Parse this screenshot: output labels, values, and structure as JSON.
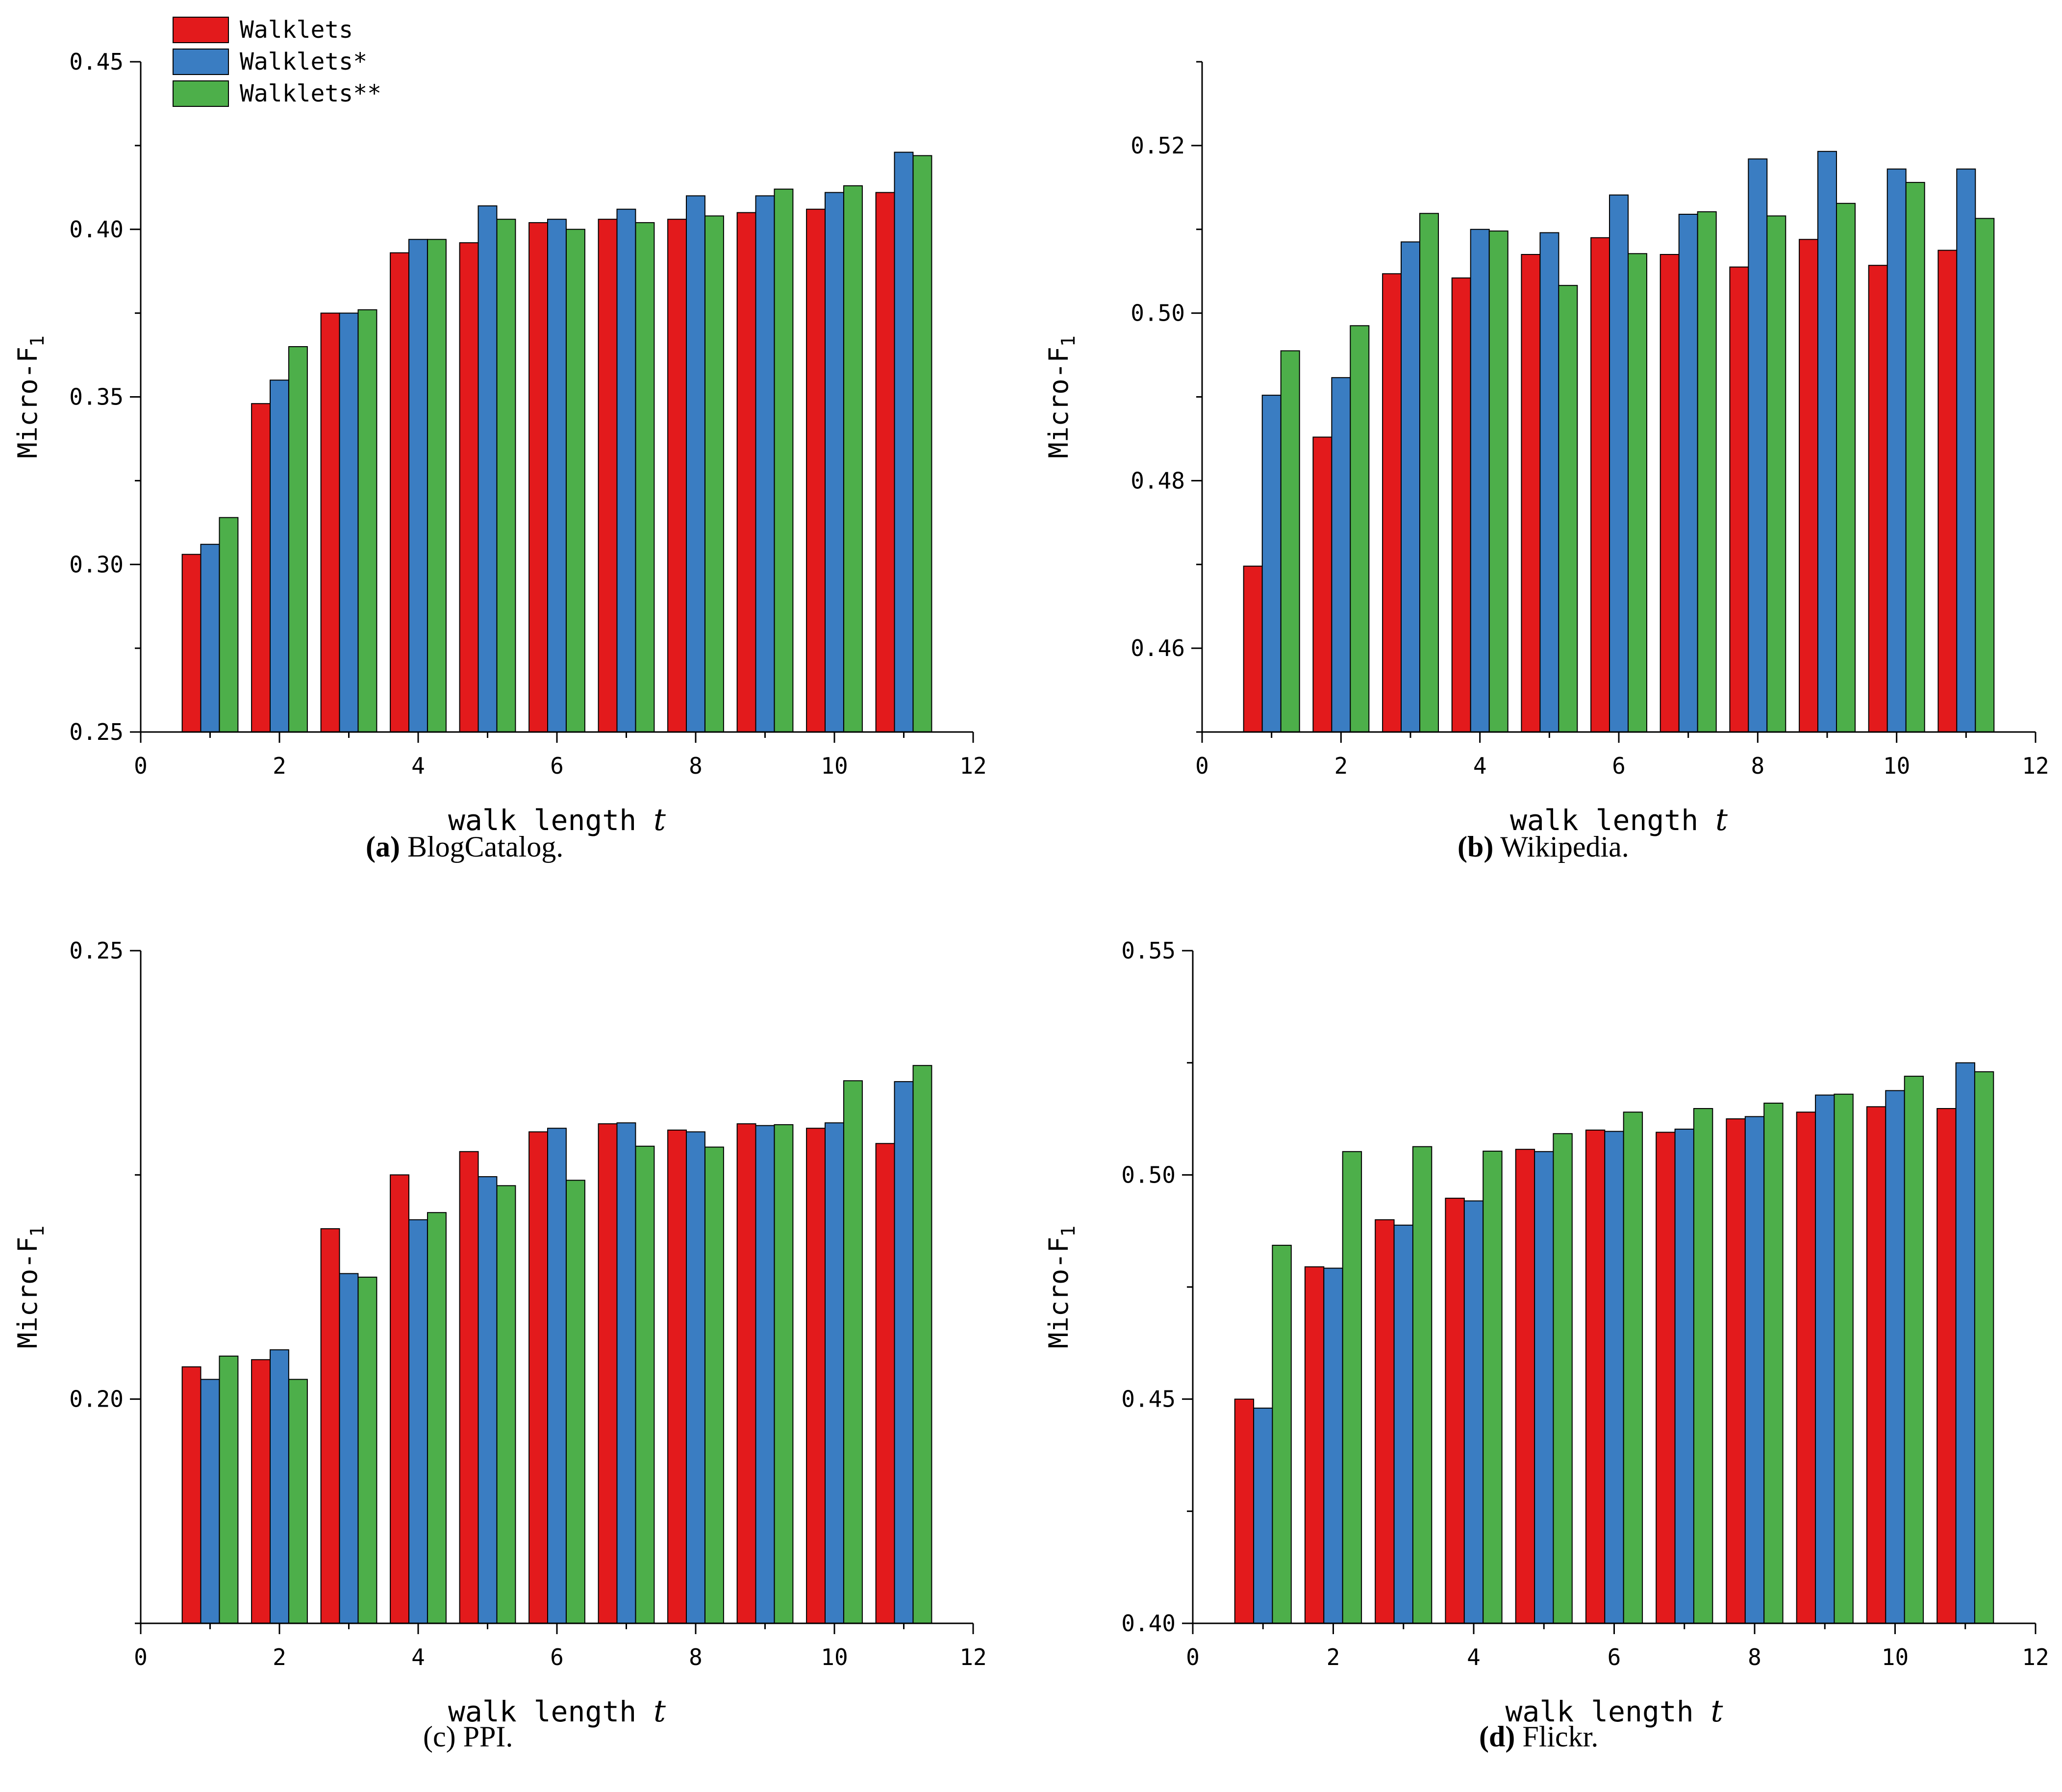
{
  "colors": {
    "Walklets": "#e31a1c",
    "Walklets*": "#3a7dc2",
    "Walklets**": "#4daf4a"
  },
  "legend": {
    "items": [
      {
        "label": "Walklets",
        "color": "#e31a1c"
      },
      {
        "label": "Walklets*",
        "color": "#3a7dc2"
      },
      {
        "label": "Walklets**",
        "color": "#4daf4a"
      }
    ]
  },
  "chart_data": [
    {
      "type": "bar",
      "caption_letter": "(a)",
      "caption_text": "BlogCatalog.",
      "xlabel": "walk length",
      "xvar": "t",
      "ylabel": "Micro-F",
      "ylabel_sub": "1",
      "xlim": [
        0,
        12
      ],
      "ylim": [
        0.25,
        0.45
      ],
      "xticks": [
        "0",
        "2",
        "4",
        "6",
        "8",
        "10",
        "12"
      ],
      "yticks": [
        0.25,
        0.3,
        0.35,
        0.4,
        0.45
      ],
      "ytick_labels": [
        "0.25",
        "0.30",
        "0.35",
        "0.40",
        "0.45"
      ],
      "x": [
        1,
        2,
        3,
        4,
        5,
        6,
        7,
        8,
        9,
        10,
        11
      ],
      "series": [
        {
          "name": "Walklets",
          "values": [
            0.303,
            0.348,
            0.375,
            0.393,
            0.396,
            0.402,
            0.403,
            0.403,
            0.405,
            0.406,
            0.411
          ]
        },
        {
          "name": "Walklets*",
          "values": [
            0.306,
            0.355,
            0.375,
            0.397,
            0.407,
            0.403,
            0.406,
            0.41,
            0.41,
            0.411,
            0.423
          ]
        },
        {
          "name": "Walklets**",
          "values": [
            0.314,
            0.365,
            0.376,
            0.397,
            0.403,
            0.4,
            0.402,
            0.404,
            0.412,
            0.413,
            0.422
          ]
        }
      ]
    },
    {
      "type": "bar",
      "caption_letter": "(b)",
      "caption_text": "Wikipedia.",
      "xlabel": "walk length",
      "xvar": "t",
      "ylabel": "Micro-F",
      "ylabel_sub": "1",
      "xlim": [
        0,
        12
      ],
      "ylim": [
        0.45,
        0.53
      ],
      "xticks": [
        "0",
        "2",
        "4",
        "6",
        "8",
        "10",
        "12"
      ],
      "yticks": [
        0.46,
        0.48,
        0.5,
        0.52
      ],
      "ytick_labels": [
        "0.46",
        "0.48",
        "0.50",
        "0.52"
      ],
      "x": [
        1,
        2,
        3,
        4,
        5,
        6,
        7,
        8,
        9,
        10,
        11
      ],
      "series": [
        {
          "name": "Walklets",
          "values": [
            0.4698,
            0.4852,
            0.5047,
            0.5042,
            0.507,
            0.509,
            0.507,
            0.5055,
            0.5088,
            0.5057,
            0.5075
          ]
        },
        {
          "name": "Walklets*",
          "values": [
            0.4902,
            0.4923,
            0.5085,
            0.51,
            0.5096,
            0.5141,
            0.5118,
            0.5184,
            0.5193,
            0.5172,
            0.5172
          ]
        },
        {
          "name": "Walklets**",
          "values": [
            0.4955,
            0.4985,
            0.5119,
            0.5098,
            0.5033,
            0.5071,
            0.5121,
            0.5116,
            0.5131,
            0.5156,
            0.5113
          ]
        }
      ]
    },
    {
      "type": "bar",
      "caption_letter": "(c)",
      "caption_text": "PPI.",
      "xlabel": "walk length",
      "xvar": "t",
      "ylabel": "Micro-F",
      "ylabel_sub": "1",
      "xlim": [
        0,
        12
      ],
      "ylim": [
        0.175,
        0.25
      ],
      "xticks": [
        "0",
        "2",
        "4",
        "6",
        "8",
        "10",
        "12"
      ],
      "yticks": [
        0.2,
        0.25
      ],
      "ytick_labels": [
        "0.20",
        "0.25"
      ],
      "x": [
        1,
        2,
        3,
        4,
        5,
        6,
        7,
        8,
        9,
        10,
        11
      ],
      "series": [
        {
          "name": "Walklets",
          "values": [
            0.2036,
            0.2044,
            0.219,
            0.225,
            0.2276,
            0.2298,
            0.2307,
            0.23,
            0.2307,
            0.2302,
            0.2285
          ]
        },
        {
          "name": "Walklets*",
          "values": [
            0.2022,
            0.2055,
            0.214,
            0.22,
            0.2248,
            0.2302,
            0.2308,
            0.2298,
            0.2305,
            0.2308,
            0.2354
          ]
        },
        {
          "name": "Walklets**",
          "values": [
            0.2048,
            0.2022,
            0.2136,
            0.2208,
            0.2238,
            0.2244,
            0.2282,
            0.2281,
            0.2306,
            0.2355,
            0.2372
          ]
        }
      ]
    },
    {
      "type": "bar",
      "caption_letter": "(d)",
      "caption_text": "Flickr.",
      "xlabel": "walk length",
      "xvar": "t",
      "ylabel": "Micro-F",
      "ylabel_sub": "1",
      "xlim": [
        0,
        12
      ],
      "ylim": [
        0.4,
        0.55
      ],
      "xticks": [
        "0",
        "2",
        "4",
        "6",
        "8",
        "10",
        "12"
      ],
      "yticks": [
        0.4,
        0.45,
        0.5,
        0.55
      ],
      "ytick_labels": [
        "0.40",
        "0.45",
        "0.50",
        "0.55"
      ],
      "x": [
        1,
        2,
        3,
        4,
        5,
        6,
        7,
        8,
        9,
        10,
        11
      ],
      "series": [
        {
          "name": "Walklets",
          "values": [
            0.45,
            0.4795,
            0.49,
            0.4948,
            0.5057,
            0.51,
            0.5095,
            0.5125,
            0.514,
            0.5152,
            0.5148
          ]
        },
        {
          "name": "Walklets*",
          "values": [
            0.448,
            0.4792,
            0.4888,
            0.4942,
            0.5052,
            0.5097,
            0.5102,
            0.513,
            0.5178,
            0.5188,
            0.525
          ]
        },
        {
          "name": "Walklets**",
          "values": [
            0.4843,
            0.5052,
            0.5063,
            0.5053,
            0.5092,
            0.514,
            0.5148,
            0.516,
            0.518,
            0.522,
            0.523
          ]
        }
      ]
    }
  ]
}
